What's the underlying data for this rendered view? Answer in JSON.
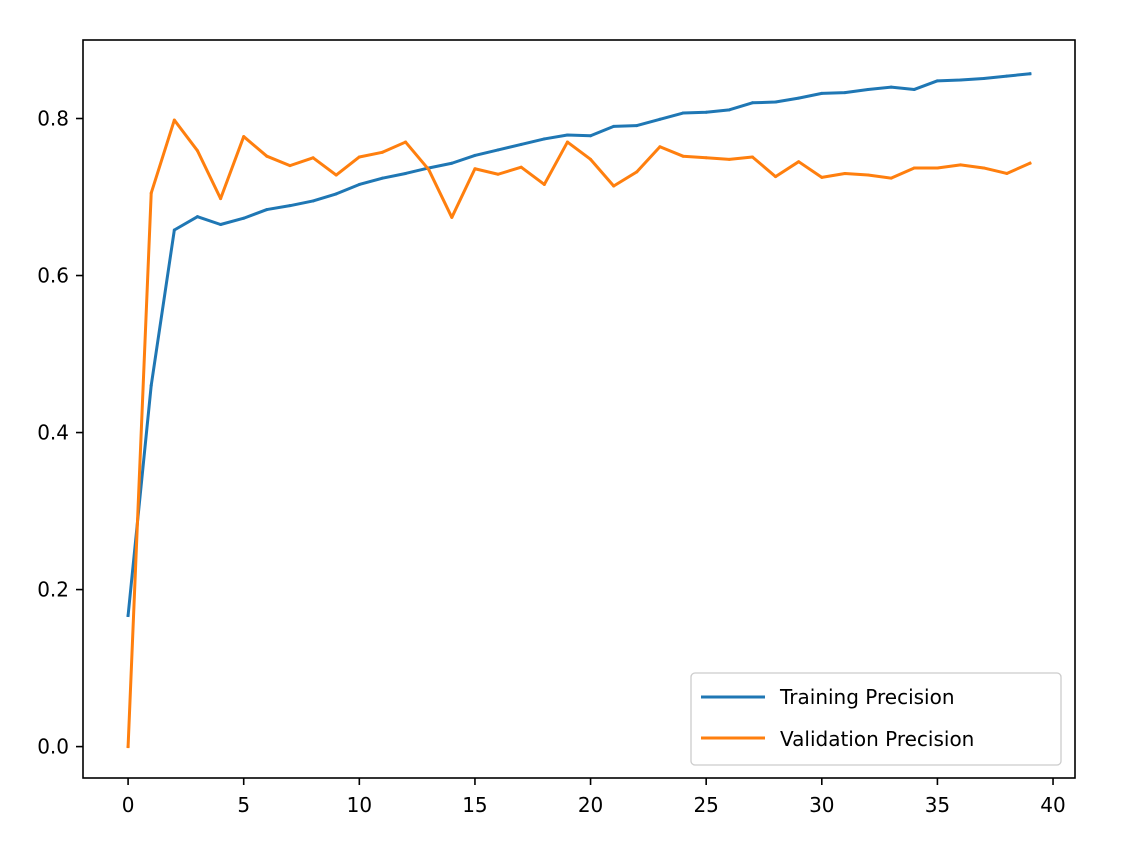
{
  "chart_data": {
    "type": "line",
    "title": "",
    "xlabel": "",
    "ylabel": "",
    "xlim": [
      -1.95,
      40.95
    ],
    "ylim": [
      -0.04,
      0.9
    ],
    "xticks": [
      0,
      5,
      10,
      15,
      20,
      25,
      30,
      35,
      40
    ],
    "yticks": [
      0.0,
      0.2,
      0.4,
      0.6,
      0.8
    ],
    "xtick_labels": [
      "0",
      "5",
      "10",
      "15",
      "20",
      "25",
      "30",
      "35",
      "40"
    ],
    "ytick_labels": [
      "0.0",
      "0.2",
      "0.4",
      "0.6",
      "0.8"
    ],
    "grid": false,
    "legend_position": "lower-right",
    "x": [
      0,
      1,
      2,
      3,
      4,
      5,
      6,
      7,
      8,
      9,
      10,
      11,
      12,
      13,
      14,
      15,
      16,
      17,
      18,
      19,
      20,
      21,
      22,
      23,
      24,
      25,
      26,
      27,
      28,
      29,
      30,
      31,
      32,
      33,
      34,
      35,
      36,
      37,
      38,
      39
    ],
    "series": [
      {
        "name": "Training Precision",
        "color": "#1f77b4",
        "values": [
          0.167,
          0.46,
          0.658,
          0.675,
          0.665,
          0.673,
          0.684,
          0.689,
          0.695,
          0.704,
          0.716,
          0.724,
          0.73,
          0.737,
          0.743,
          0.753,
          0.76,
          0.767,
          0.774,
          0.779,
          0.778,
          0.79,
          0.791,
          0.799,
          0.807,
          0.808,
          0.811,
          0.82,
          0.821,
          0.826,
          0.832,
          0.833,
          0.837,
          0.84,
          0.837,
          0.848,
          0.849,
          0.851,
          0.854,
          0.857
        ]
      },
      {
        "name": "Validation Precision",
        "color": "#ff7f0e",
        "values": [
          0.0,
          0.705,
          0.798,
          0.759,
          0.698,
          0.777,
          0.752,
          0.74,
          0.75,
          0.728,
          0.751,
          0.757,
          0.77,
          0.735,
          0.674,
          0.736,
          0.729,
          0.738,
          0.716,
          0.77,
          0.748,
          0.714,
          0.732,
          0.764,
          0.752,
          0.75,
          0.748,
          0.751,
          0.726,
          0.745,
          0.725,
          0.73,
          0.728,
          0.724,
          0.737,
          0.737,
          0.741,
          0.737,
          0.73,
          0.743
        ]
      }
    ]
  }
}
